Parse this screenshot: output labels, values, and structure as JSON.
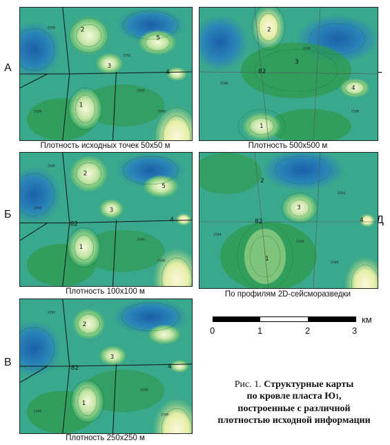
{
  "panels": [
    {
      "id": "A",
      "letter": "А",
      "caption": "Плотность исходных точек 50x50 м",
      "labels": [
        "1",
        "2",
        "3",
        "4",
        "5"
      ]
    },
    {
      "id": "G",
      "letter": "Г",
      "caption": "Плотность  500x500 м",
      "labels": [
        "1",
        "2",
        "3",
        "4",
        "82"
      ]
    },
    {
      "id": "B",
      "letter": "Б",
      "caption": "Плотность  100x100 м",
      "labels": [
        "1",
        "2",
        "3",
        "4",
        "5",
        "82"
      ]
    },
    {
      "id": "D",
      "letter": "Д",
      "caption": "По профилям 2D-сейсморазведки",
      "labels": [
        "1",
        "2",
        "3",
        "4",
        "82"
      ]
    },
    {
      "id": "V",
      "letter": "В",
      "caption": "Плотность  250x250 м",
      "labels": [
        "1",
        "2",
        "3",
        "4",
        "82"
      ]
    }
  ],
  "scale_bar": {
    "ticks": [
      "0",
      "1",
      "2",
      "3"
    ],
    "unit": "км"
  },
  "figure_caption": {
    "prefix": "Рис. 1. ",
    "line1": "Структурные карты",
    "line2": "по кровле пласта Ю",
    "line2_sub": "1",
    "line2_end": ",",
    "line3": "построенные с различной",
    "line4": "плотностью исходной информации"
  },
  "colors": {
    "deep": "#1f6fb0",
    "mid": "#3aa88c",
    "green": "#2e9a4a",
    "light": "#b9e0a0",
    "peak": "#f3f7d8"
  }
}
